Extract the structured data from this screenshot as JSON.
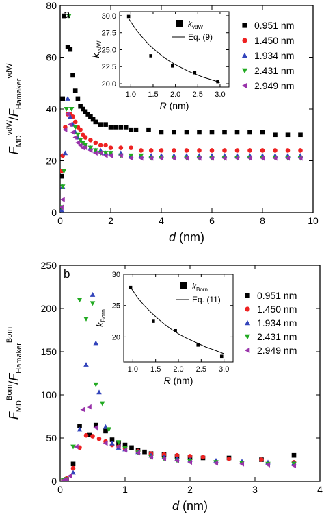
{
  "chart_data": [
    {
      "type": "scatter",
      "panel": "a",
      "xlabel_sym": "d",
      "xlabel_unit": "(nm)",
      "ylabel": {
        "num": "F",
        "num_sub": "MD",
        "num_sup": "vdW",
        "den": "F",
        "den_sub": "Hamaker",
        "den_sup": "vdW"
      },
      "xlim": [
        0,
        10
      ],
      "ylim": [
        0,
        80
      ],
      "xticks": [
        0,
        2,
        4,
        6,
        8,
        10
      ],
      "yticks": [
        0,
        20,
        40,
        60,
        80
      ],
      "legend_position": "right, inside top",
      "series": [
        {
          "name": "0.951 nm",
          "marker": "square",
          "color": "#000000",
          "x": [
            0.05,
            0.1,
            0.15,
            0.3,
            0.4,
            0.5,
            0.6,
            0.7,
            0.8,
            0.9,
            1.0,
            1.1,
            1.2,
            1.3,
            1.4,
            1.6,
            1.8,
            2.0,
            2.2,
            2.4,
            2.6,
            2.8,
            3.0,
            3.5,
            4.0,
            4.5,
            5.0,
            5.5,
            6.0,
            6.5,
            7.0,
            7.5,
            8.0,
            8.5,
            9.0,
            9.5
          ],
          "y": [
            14,
            44,
            76,
            64,
            63,
            53,
            47,
            44,
            41,
            40,
            39,
            38,
            37,
            36,
            35,
            34,
            34,
            33,
            33,
            33,
            33,
            32,
            32,
            32,
            31,
            31,
            31,
            31,
            31,
            31,
            31,
            31,
            31,
            30,
            30,
            30
          ]
        },
        {
          "name": "1.450 nm",
          "marker": "circle",
          "color": "#ee2222",
          "x": [
            0.05,
            0.1,
            0.2,
            0.3,
            0.4,
            0.5,
            0.6,
            0.7,
            0.8,
            0.9,
            1.0,
            1.2,
            1.4,
            1.6,
            1.8,
            2.0,
            2.4,
            2.8,
            3.2,
            3.6,
            4.0,
            4.5,
            5.0,
            5.5,
            6.0,
            6.5,
            7.0,
            7.5,
            8.0,
            8.5,
            9.0,
            9.5
          ],
          "y": [
            16,
            22,
            33,
            38,
            38,
            37,
            35,
            33,
            32,
            30,
            29,
            28,
            27,
            26,
            26,
            25,
            25,
            25,
            24,
            24,
            24,
            24,
            24,
            24,
            24,
            24,
            24,
            24,
            24,
            24,
            24,
            24
          ]
        },
        {
          "name": "1.934 nm",
          "marker": "triangle-up",
          "color": "#3344bb",
          "x": [
            0.05,
            0.1,
            0.2,
            0.3,
            0.4,
            0.5,
            0.6,
            0.7,
            0.8,
            0.9,
            1.0,
            1.2,
            1.4,
            1.6,
            1.8,
            2.0,
            2.4,
            2.8,
            3.2,
            3.6,
            4.0,
            4.5,
            5.0,
            5.5,
            6.0,
            6.5,
            7.0,
            7.5,
            8.0,
            8.5,
            9.0,
            9.5
          ],
          "y": [
            1,
            10,
            23,
            44,
            37,
            34,
            31,
            29,
            28,
            27,
            26,
            25,
            24,
            24,
            23,
            23,
            23,
            22,
            22,
            22,
            22,
            22,
            22,
            22,
            22,
            22,
            22,
            22,
            22,
            22,
            22,
            22
          ]
        },
        {
          "name": "2.431 nm",
          "marker": "triangle-down",
          "color": "#22aa22",
          "x": [
            0.05,
            0.1,
            0.15,
            0.25,
            0.35,
            0.45,
            0.6,
            0.7,
            0.8,
            0.9,
            1.0,
            1.2,
            1.4,
            1.6,
            1.8,
            2.0,
            2.4,
            2.8,
            3.2,
            3.6,
            4.0,
            4.5,
            5.0,
            5.5,
            6.0,
            6.5,
            7.0,
            7.5,
            8.0,
            8.5,
            9.0,
            9.5
          ],
          "y": [
            2,
            10,
            16,
            40,
            76,
            40,
            33,
            30,
            28,
            27,
            26,
            25,
            24,
            23,
            23,
            23,
            22,
            22,
            22,
            21,
            21,
            21,
            21,
            21,
            21,
            21,
            21,
            21,
            21,
            21,
            21,
            21
          ]
        },
        {
          "name": "2.949 nm",
          "marker": "triangle-left",
          "color": "#9933aa",
          "x": [
            0.05,
            0.1,
            0.2,
            0.3,
            0.4,
            0.5,
            0.6,
            0.7,
            0.8,
            0.9,
            1.0,
            1.2,
            1.4,
            1.6,
            1.8,
            2.0,
            2.4,
            2.8,
            3.2,
            3.6,
            4.0,
            4.5,
            5.0,
            5.5,
            6.0,
            6.5,
            7.0,
            7.5,
            8.0,
            8.5,
            9.0,
            9.5
          ],
          "y": [
            2,
            5,
            32,
            38,
            34,
            31,
            29,
            27,
            26,
            25,
            25,
            24,
            23,
            23,
            22,
            22,
            22,
            21,
            21,
            21,
            21,
            21,
            21,
            21,
            21,
            21,
            21,
            21,
            21,
            21,
            21,
            21
          ]
        }
      ],
      "inset": {
        "xlabel_sym": "R",
        "xlabel_unit": "(nm)",
        "ylabel": {
          "sym": "k",
          "sub": "vdW"
        },
        "xlim": [
          0.75,
          3.2
        ],
        "ylim": [
          19.5,
          30.6
        ],
        "xticks": [
          1.0,
          1.5,
          2.0,
          2.5,
          3.0
        ],
        "yticks": [
          20.0,
          22.5,
          25.0,
          27.5,
          30.0
        ],
        "legend_marker": {
          "sym": "k",
          "sub": "vdW"
        },
        "legend_line": "Eq. (9)",
        "points": {
          "x": [
            0.951,
            1.45,
            1.934,
            2.431,
            2.949
          ],
          "y": [
            29.9,
            24.1,
            22.6,
            21.6,
            20.3
          ]
        },
        "fit": {
          "x": [
            0.95,
            1.1,
            1.25,
            1.4,
            1.55,
            1.7,
            1.85,
            2.0,
            2.15,
            2.3,
            2.45,
            2.6,
            2.75,
            2.9,
            3.0
          ],
          "y": [
            29.6,
            28.1,
            26.9,
            25.8,
            24.9,
            24.1,
            23.4,
            22.8,
            22.3,
            21.8,
            21.4,
            21.0,
            20.7,
            20.4,
            20.2
          ]
        }
      }
    },
    {
      "type": "scatter",
      "panel": "b",
      "xlabel_sym": "d",
      "xlabel_unit": "(nm)",
      "ylabel": {
        "num": "F",
        "num_sub": "MD",
        "num_sup": "Born",
        "den": "F",
        "den_sub": "Hamaker",
        "den_sup": "Born"
      },
      "xlim": [
        0,
        4
      ],
      "ylim": [
        0,
        250
      ],
      "xticks": [
        0,
        1,
        2,
        3,
        4
      ],
      "yticks": [
        0,
        50,
        100,
        150,
        200,
        250
      ],
      "legend_position": "right, inside top",
      "series": [
        {
          "name": "0.951 nm",
          "marker": "square",
          "color": "#000000",
          "x": [
            0.05,
            0.1,
            0.2,
            0.3,
            0.45,
            0.55,
            0.7,
            0.8,
            0.9,
            1.0,
            1.1,
            1.2,
            1.3,
            1.4,
            1.6,
            1.8,
            2.0,
            2.2,
            2.6,
            3.1,
            3.6
          ],
          "y": [
            1,
            2,
            20,
            64,
            54,
            65,
            58,
            48,
            44,
            42,
            39,
            36,
            34,
            32,
            31,
            29,
            28,
            27,
            27,
            25,
            30
          ]
        },
        {
          "name": "1.450 nm",
          "marker": "circle",
          "color": "#ee2222",
          "x": [
            0.05,
            0.1,
            0.2,
            0.3,
            0.4,
            0.5,
            0.6,
            0.7,
            0.8,
            0.9,
            1.0,
            1.2,
            1.4,
            1.6,
            1.8,
            2.0,
            2.2,
            2.6,
            3.1,
            3.6
          ],
          "y": [
            1,
            3,
            15,
            39,
            53,
            52,
            49,
            46,
            42,
            40,
            38,
            35,
            32,
            31,
            30,
            29,
            28,
            26,
            25,
            22
          ]
        },
        {
          "name": "1.934 nm",
          "marker": "triangle-up",
          "color": "#3344bb",
          "x": [
            0.05,
            0.1,
            0.2,
            0.3,
            0.4,
            0.5,
            0.55,
            0.6,
            0.7,
            0.8,
            0.9,
            1.0,
            1.2,
            1.4,
            1.6,
            1.8,
            2.0,
            2.4,
            2.8,
            3.2,
            3.6
          ],
          "y": [
            1,
            2,
            10,
            60,
            135,
            216,
            160,
            103,
            63,
            44,
            39,
            37,
            34,
            30,
            28,
            26,
            25,
            24,
            23,
            22,
            21
          ]
        },
        {
          "name": "2.431 nm",
          "marker": "triangle-down",
          "color": "#22aa22",
          "x": [
            0.05,
            0.1,
            0.2,
            0.3,
            0.4,
            0.5,
            0.55,
            0.65,
            0.75,
            0.9,
            1.0,
            1.2,
            1.4,
            1.6,
            1.8,
            2.0,
            2.4,
            2.8,
            3.2,
            3.6
          ],
          "y": [
            1,
            2,
            40,
            210,
            188,
            206,
            112,
            90,
            60,
            45,
            38,
            33,
            28,
            26,
            24,
            23,
            22,
            21,
            20,
            20
          ]
        },
        {
          "name": "2.949 nm",
          "marker": "triangle-left",
          "color": "#9933aa",
          "x": [
            0.05,
            0.1,
            0.15,
            0.25,
            0.35,
            0.45,
            0.55,
            0.7,
            0.9,
            1.0,
            1.2,
            1.4,
            1.6,
            1.8,
            2.0,
            2.4,
            2.8,
            3.2,
            3.6
          ],
          "y": [
            1,
            2,
            6,
            40,
            83,
            86,
            62,
            44,
            40,
            36,
            33,
            28,
            26,
            24,
            22,
            21,
            20,
            19,
            18
          ]
        }
      ],
      "inset": {
        "xlabel_sym": "R",
        "xlabel_unit": "(nm)",
        "ylabel": {
          "sym": "k",
          "sub": "Born"
        },
        "xlim": [
          0.8,
          3.2
        ],
        "ylim": [
          16,
          30
        ],
        "xticks": [
          1.0,
          1.5,
          2.0,
          2.5,
          3.0
        ],
        "yticks": [
          20,
          25,
          30
        ],
        "legend_marker": {
          "sym": "k",
          "sub": "Born"
        },
        "legend_line": "Eq. (11)",
        "points": {
          "x": [
            0.951,
            1.45,
            1.934,
            2.431,
            2.949
          ],
          "y": [
            27.9,
            22.5,
            21.0,
            18.7,
            16.9
          ]
        },
        "fit": {
          "x": [
            0.95,
            1.1,
            1.25,
            1.4,
            1.55,
            1.7,
            1.85,
            2.0,
            2.15,
            2.3,
            2.45,
            2.6,
            2.75,
            2.9,
            3.0
          ],
          "y": [
            27.9,
            26.3,
            25.0,
            23.9,
            22.9,
            22.0,
            21.2,
            20.5,
            19.9,
            19.4,
            18.9,
            18.4,
            18.0,
            17.6,
            17.3
          ]
        }
      }
    }
  ]
}
